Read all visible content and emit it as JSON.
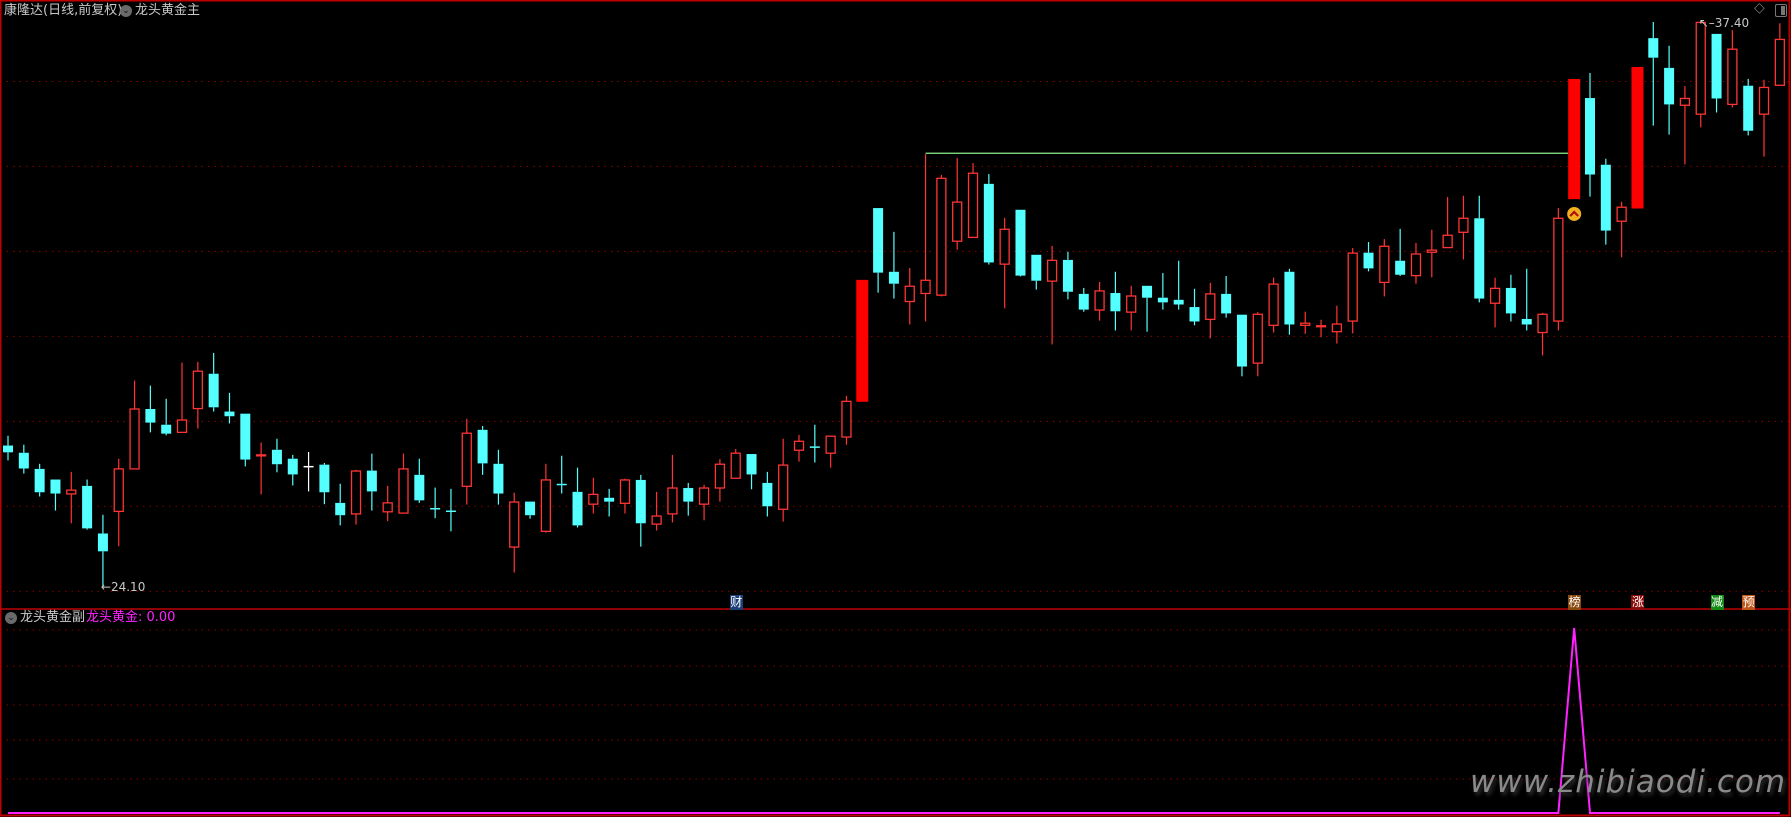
{
  "header": {
    "title": "康隆达(日线,前复权)",
    "main_indicator": "龙头黄金主",
    "sub_indicator": "龙头黄金副",
    "sub_value_label": "龙头黄金: 0.00",
    "icons": [
      "chevron-circle-icon",
      "diamond-icon",
      "panel-toggle-icon"
    ]
  },
  "watermark": "www.zhibiaodi.com",
  "colors": {
    "up": "#FF3434",
    "down": "#54FFFF",
    "signal_bar": "#FF0000",
    "level_line": "#8CF08C",
    "sub_line": "#FF22FF",
    "grid": "#8B0000",
    "frame": "#C00000"
  },
  "chart_data": [
    {
      "type": "candlestick",
      "ylim": [
        24.1,
        37.4
      ],
      "grid_levels": [
        24,
        26,
        28,
        30,
        32,
        34,
        36
      ],
      "grid": true,
      "high_label": {
        "text": "37.40",
        "index": 107
      },
      "low_label": {
        "text": "24.10",
        "index": 6
      },
      "level_line": {
        "value": 34.31,
        "from_index": 58,
        "to_index": 99
      },
      "signal_bars": [
        54,
        99,
        103
      ],
      "chevron_signal": {
        "index": 99,
        "icon": "chevron-up-circle-icon"
      },
      "markers": [
        {
          "index": 46,
          "label": "财",
          "bg": "#1C3F78"
        },
        {
          "index": 99,
          "label": "榜",
          "bg": "#8A4A10"
        },
        {
          "index": 103,
          "label": "涨",
          "bg": "#8B0A0A"
        },
        {
          "index": 108,
          "label": "减",
          "bg": "#138A13"
        },
        {
          "index": 110,
          "label": "预",
          "bg": "#C0561A"
        }
      ],
      "ohlc": [
        [
          27.43,
          27.66,
          27.08,
          27.27
        ],
        [
          27.26,
          27.45,
          26.77,
          26.89
        ],
        [
          26.88,
          27.0,
          26.23,
          26.33
        ],
        [
          26.63,
          26.63,
          25.9,
          26.3
        ],
        [
          26.29,
          26.81,
          25.6,
          26.38
        ],
        [
          26.48,
          26.63,
          25.45,
          25.48
        ],
        [
          25.36,
          25.8,
          24.1,
          24.94
        ],
        [
          25.88,
          27.12,
          25.06,
          26.88
        ],
        [
          26.88,
          28.96,
          26.88,
          28.29
        ],
        [
          28.29,
          28.84,
          27.74,
          27.97
        ],
        [
          27.92,
          28.53,
          27.67,
          27.71
        ],
        [
          27.74,
          29.38,
          27.74,
          28.03
        ],
        [
          28.3,
          29.4,
          27.83,
          29.18
        ],
        [
          29.12,
          29.61,
          28.23,
          28.33
        ],
        [
          28.23,
          28.67,
          27.95,
          28.12
        ],
        [
          28.18,
          28.18,
          26.94,
          27.1
        ],
        [
          27.19,
          27.5,
          26.28,
          27.21
        ],
        [
          27.33,
          27.59,
          26.8,
          26.99
        ],
        [
          27.12,
          27.21,
          26.49,
          26.75
        ],
        [
          26.95,
          27.28,
          26.35,
          26.95
        ],
        [
          26.98,
          27.02,
          26.05,
          26.33
        ],
        [
          26.08,
          26.53,
          25.55,
          25.79
        ],
        [
          25.82,
          26.86,
          25.57,
          26.83
        ],
        [
          26.84,
          27.24,
          25.9,
          26.35
        ],
        [
          25.87,
          26.48,
          25.65,
          26.08
        ],
        [
          25.84,
          27.24,
          25.84,
          26.88
        ],
        [
          26.74,
          27.12,
          26.08,
          26.14
        ],
        [
          25.96,
          26.44,
          25.72,
          25.93
        ],
        [
          25.9,
          26.41,
          25.41,
          25.88
        ],
        [
          26.47,
          28.06,
          26.04,
          27.72
        ],
        [
          27.8,
          27.89,
          26.74,
          27.01
        ],
        [
          27.0,
          27.33,
          26.04,
          26.3
        ],
        [
          25.04,
          26.32,
          24.44,
          26.1
        ],
        [
          26.11,
          26.11,
          25.71,
          25.79
        ],
        [
          25.41,
          27.0,
          25.38,
          26.62
        ],
        [
          26.53,
          27.19,
          26.3,
          26.5
        ],
        [
          26.34,
          26.91,
          25.5,
          25.55
        ],
        [
          26.05,
          26.67,
          25.83,
          26.28
        ],
        [
          26.2,
          26.41,
          25.76,
          26.11
        ],
        [
          26.07,
          26.65,
          25.83,
          26.62
        ],
        [
          26.62,
          26.74,
          25.05,
          25.6
        ],
        [
          25.58,
          26.34,
          25.43,
          25.77
        ],
        [
          25.82,
          27.21,
          25.62,
          26.43
        ],
        [
          26.43,
          26.55,
          25.78,
          26.11
        ],
        [
          26.05,
          26.51,
          25.67,
          26.43
        ],
        [
          26.43,
          27.11,
          26.11,
          26.99
        ],
        [
          26.66,
          27.35,
          26.66,
          27.25
        ],
        [
          27.23,
          27.23,
          26.4,
          26.75
        ],
        [
          26.55,
          26.81,
          25.76,
          26.0
        ],
        [
          25.93,
          27.59,
          25.64,
          26.97
        ],
        [
          27.32,
          27.68,
          27.05,
          27.53
        ],
        [
          27.41,
          27.92,
          27.03,
          27.39
        ],
        [
          27.25,
          27.65,
          26.91,
          27.65
        ],
        [
          27.63,
          28.6,
          27.45,
          28.47
        ],
        [
          28.46,
          31.33,
          28.46,
          31.33
        ],
        [
          33.02,
          33.02,
          31.03,
          31.5
        ],
        [
          31.52,
          32.46,
          30.89,
          31.24
        ],
        [
          30.82,
          31.61,
          30.28,
          31.18
        ],
        [
          31.01,
          34.29,
          30.35,
          31.32
        ],
        [
          30.97,
          33.8,
          30.94,
          33.72
        ],
        [
          32.24,
          34.2,
          32.04,
          33.16
        ],
        [
          32.33,
          34.08,
          32.33,
          33.84
        ],
        [
          33.59,
          33.82,
          31.69,
          31.74
        ],
        [
          31.7,
          32.79,
          30.66,
          32.52
        ],
        [
          32.98,
          32.98,
          31.41,
          31.43
        ],
        [
          31.92,
          31.92,
          31.1,
          31.31
        ],
        [
          31.3,
          32.13,
          29.81,
          31.79
        ],
        [
          31.8,
          31.99,
          30.87,
          31.05
        ],
        [
          31.0,
          31.14,
          30.58,
          30.63
        ],
        [
          30.62,
          31.28,
          30.37,
          31.07
        ],
        [
          31.02,
          31.52,
          30.14,
          30.59
        ],
        [
          30.57,
          31.19,
          30.14,
          30.95
        ],
        [
          31.19,
          31.19,
          30.11,
          30.91
        ],
        [
          30.91,
          31.49,
          30.63,
          30.8
        ],
        [
          30.86,
          31.78,
          30.63,
          30.75
        ],
        [
          30.69,
          31.12,
          30.26,
          30.35
        ],
        [
          30.4,
          31.26,
          29.95,
          31.0
        ],
        [
          31.0,
          31.42,
          30.44,
          30.54
        ],
        [
          30.51,
          30.51,
          29.06,
          29.29
        ],
        [
          29.37,
          30.57,
          29.06,
          30.52
        ],
        [
          30.26,
          31.38,
          30.09,
          31.23
        ],
        [
          31.52,
          31.59,
          30.04,
          30.28
        ],
        [
          30.26,
          30.58,
          30.06,
          30.31
        ],
        [
          30.23,
          30.39,
          29.98,
          30.25
        ],
        [
          30.11,
          30.72,
          29.83,
          30.29
        ],
        [
          30.36,
          32.08,
          30.07,
          31.96
        ],
        [
          31.97,
          32.22,
          31.53,
          31.6
        ],
        [
          31.27,
          32.29,
          30.94,
          32.12
        ],
        [
          31.78,
          32.53,
          31.42,
          31.45
        ],
        [
          31.43,
          32.2,
          31.24,
          31.94
        ],
        [
          31.98,
          32.51,
          31.39,
          32.03
        ],
        [
          32.09,
          33.28,
          32.09,
          32.38
        ],
        [
          32.45,
          33.31,
          31.81,
          32.78
        ],
        [
          32.78,
          33.31,
          30.8,
          30.89
        ],
        [
          30.78,
          31.38,
          30.21,
          31.13
        ],
        [
          31.14,
          31.45,
          30.35,
          30.54
        ],
        [
          30.41,
          31.59,
          30.14,
          30.28
        ],
        [
          30.09,
          30.55,
          29.55,
          30.52
        ],
        [
          30.36,
          33.02,
          30.14,
          32.78
        ],
        [
          33.23,
          36.06,
          33.14,
          36.06
        ],
        [
          35.61,
          36.2,
          33.29,
          33.81
        ],
        [
          34.04,
          34.18,
          32.16,
          32.49
        ],
        [
          32.71,
          33.17,
          31.86,
          33.04
        ],
        [
          33.01,
          36.34,
          33.01,
          36.34
        ],
        [
          37.02,
          37.4,
          34.96,
          36.56
        ],
        [
          36.32,
          36.84,
          34.75,
          35.46
        ],
        [
          35.44,
          35.89,
          34.05,
          35.6
        ],
        [
          35.23,
          37.4,
          34.92,
          37.39
        ],
        [
          37.12,
          37.12,
          35.27,
          35.6
        ],
        [
          35.46,
          37.21,
          35.39,
          36.76
        ],
        [
          35.9,
          36.06,
          34.73,
          34.84
        ],
        [
          35.23,
          36.04,
          34.23,
          35.86
        ],
        [
          35.91,
          37.37,
          35.91,
          36.99
        ]
      ]
    },
    {
      "type": "line",
      "series": [
        {
          "name": "龙头黄金",
          "values": [
            0,
            0,
            0,
            0,
            0,
            0,
            0,
            0,
            0,
            0,
            0,
            0,
            0,
            0,
            0,
            0,
            0,
            0,
            0,
            0,
            0,
            0,
            0,
            0,
            0,
            0,
            0,
            0,
            0,
            0,
            0,
            0,
            0,
            0,
            0,
            0,
            0,
            0,
            0,
            0,
            0,
            0,
            0,
            0,
            0,
            0,
            0,
            0,
            0,
            0,
            0,
            0,
            0,
            0,
            0,
            0,
            0,
            0,
            0,
            0,
            0,
            0,
            0,
            0,
            0,
            0,
            0,
            0,
            0,
            0,
            0,
            0,
            0,
            0,
            0,
            0,
            0,
            0,
            0,
            0,
            0,
            0,
            0,
            0,
            0,
            0,
            0,
            0,
            0,
            0,
            0,
            0,
            0,
            0,
            0,
            0,
            0,
            0,
            0,
            1,
            0,
            0,
            0,
            0,
            0,
            0,
            0,
            0,
            0,
            0,
            0,
            0,
            0
          ]
        }
      ],
      "ylim": [
        0,
        1
      ],
      "grid": true
    }
  ]
}
